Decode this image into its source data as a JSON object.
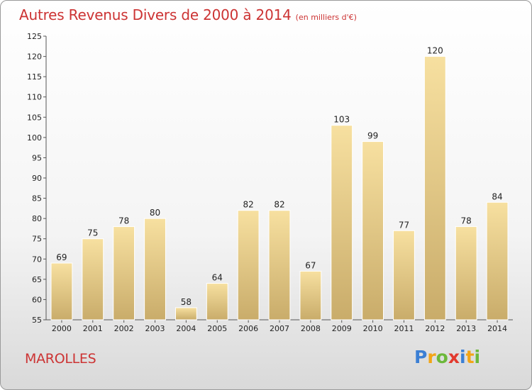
{
  "chart_data": {
    "type": "bar",
    "title": "Autres Revenus Divers de 2000 à 2014",
    "subtitle": "(en milliers d'€)",
    "categories": [
      "2000",
      "2001",
      "2002",
      "2003",
      "2004",
      "2005",
      "2006",
      "2007",
      "2008",
      "2009",
      "2010",
      "2011",
      "2012",
      "2013",
      "2014"
    ],
    "values": [
      69,
      75,
      78,
      80,
      58,
      64,
      82,
      82,
      67,
      103,
      99,
      77,
      120,
      78,
      84
    ],
    "ylim": [
      55,
      125
    ],
    "yticks": [
      55,
      60,
      65,
      70,
      75,
      80,
      85,
      90,
      95,
      100,
      105,
      110,
      115,
      120,
      125
    ],
    "grid": false,
    "bar_color": "#e8cc84"
  },
  "footer": {
    "town": "MAROLLES",
    "brand": [
      "P",
      "r",
      "o",
      "x",
      "i",
      "t",
      "i"
    ],
    "brand_colors": [
      "#3b7fd4",
      "#f2a516",
      "#6cb83a",
      "#e23a2e",
      "#3b7fd4",
      "#f2a516",
      "#6cb83a"
    ]
  }
}
